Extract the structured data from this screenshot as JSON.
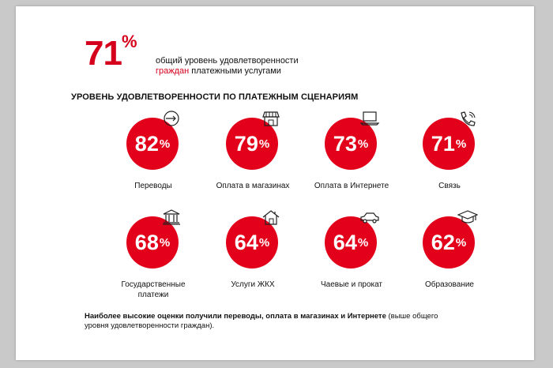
{
  "headline": {
    "percent": "71",
    "percent_sign": "%",
    "text_line1": "общий уровень удовлетворенности",
    "text_accent": "граждан",
    "text_line2_rest": " платежными услугами"
  },
  "section_title": "УРОВЕНЬ УДОВЛЕТВОРЕННОСТИ ПО ПЛАТЕЖНЫМ СЦЕНАРИЯМ",
  "scenarios": [
    {
      "value": "82",
      "label": "Переводы",
      "icon": "transfer-icon"
    },
    {
      "value": "79",
      "label": "Оплата в магазинах",
      "icon": "shop-icon"
    },
    {
      "value": "73",
      "label": "Оплата в Интернете",
      "icon": "laptop-icon"
    },
    {
      "value": "71",
      "label": "Связь",
      "icon": "phone-icon"
    },
    {
      "value": "68",
      "label": "Государственные платежи",
      "label_line1": "Государственные",
      "label_line2": "платежи",
      "icon": "government-building-icon"
    },
    {
      "value": "64",
      "label": "Услуги ЖКХ",
      "icon": "house-icon"
    },
    {
      "value": "64",
      "label": "Чаевые и прокат",
      "icon": "car-icon"
    },
    {
      "value": "62",
      "label": "Образование",
      "icon": "graduation-cap-icon"
    }
  ],
  "percent_sign": "%",
  "footnote": {
    "bold": "Наиболее высокие оценки получили переводы, оплата в магазинах и Интернете",
    "regular": " (выше общего уровня удовлетворенности граждан)."
  },
  "colors": {
    "accent": "#e2001a",
    "text": "#111111",
    "background": "#ffffff"
  }
}
